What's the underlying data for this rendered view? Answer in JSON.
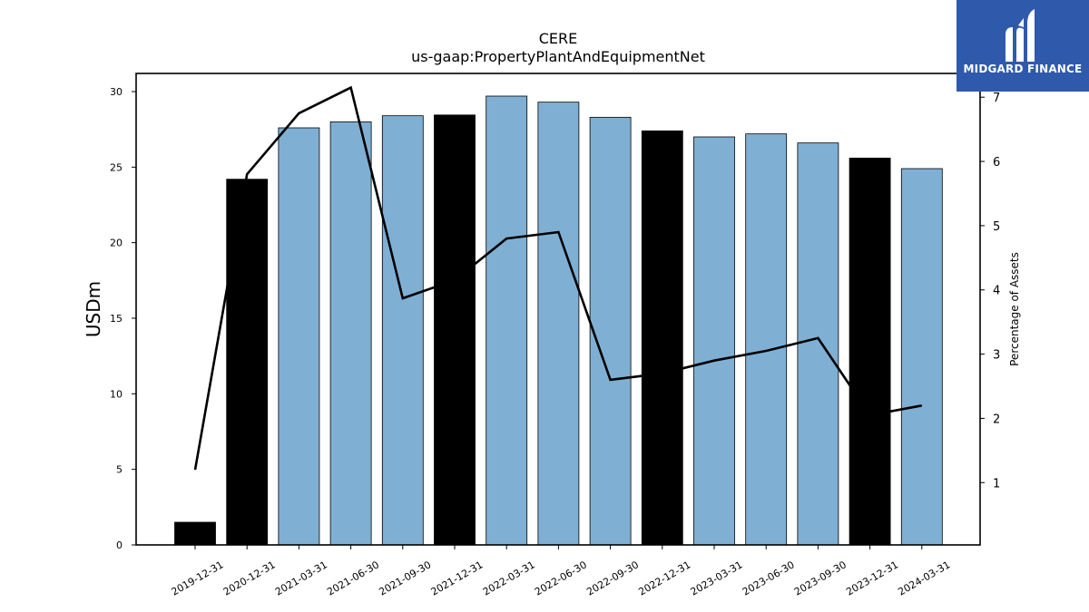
{
  "brand": {
    "name": "MIDGARD FINANCE",
    "bg_color": "#2f5aab"
  },
  "chart_data": {
    "type": "bar",
    "title": "CERE",
    "subtitle": "us-gaap:PropertyPlantAndEquipmentNet",
    "ylabel": "USDm",
    "y2label": "Percentage of Assets",
    "ylim": [
      0,
      31.2
    ],
    "y2lim": [
      0.03,
      7.37
    ],
    "yticks": [
      0,
      5,
      10,
      15,
      20,
      25,
      30
    ],
    "y2ticks": [
      1,
      2,
      3,
      4,
      5,
      6,
      7
    ],
    "categories": [
      "2019-12-31",
      "2020-12-31",
      "2021-03-31",
      "2021-06-30",
      "2021-09-30",
      "2021-12-31",
      "2022-03-31",
      "2022-06-30",
      "2022-09-30",
      "2022-12-31",
      "2023-03-31",
      "2023-06-30",
      "2023-09-30",
      "2023-12-31",
      "2024-03-31"
    ],
    "series": [
      {
        "type": "bar",
        "axis": "left",
        "values": [
          1.5,
          24.2,
          27.6,
          28.0,
          28.4,
          28.45,
          29.7,
          29.3,
          28.3,
          27.4,
          27.0,
          27.2,
          26.6,
          25.6,
          24.9
        ],
        "colors": [
          "#000000",
          "#000000",
          "#7fb0d4",
          "#7fb0d4",
          "#7fb0d4",
          "#000000",
          "#7fb0d4",
          "#7fb0d4",
          "#7fb0d4",
          "#000000",
          "#7fb0d4",
          "#7fb0d4",
          "#7fb0d4",
          "#000000",
          "#7fb0d4"
        ]
      },
      {
        "type": "line",
        "axis": "right",
        "color": "#000000",
        "values": [
          1.2,
          5.8,
          6.75,
          7.15,
          3.87,
          4.15,
          4.8,
          4.9,
          2.6,
          2.7,
          2.9,
          3.05,
          3.25,
          2.05,
          2.2
        ]
      }
    ],
    "grid": false
  }
}
